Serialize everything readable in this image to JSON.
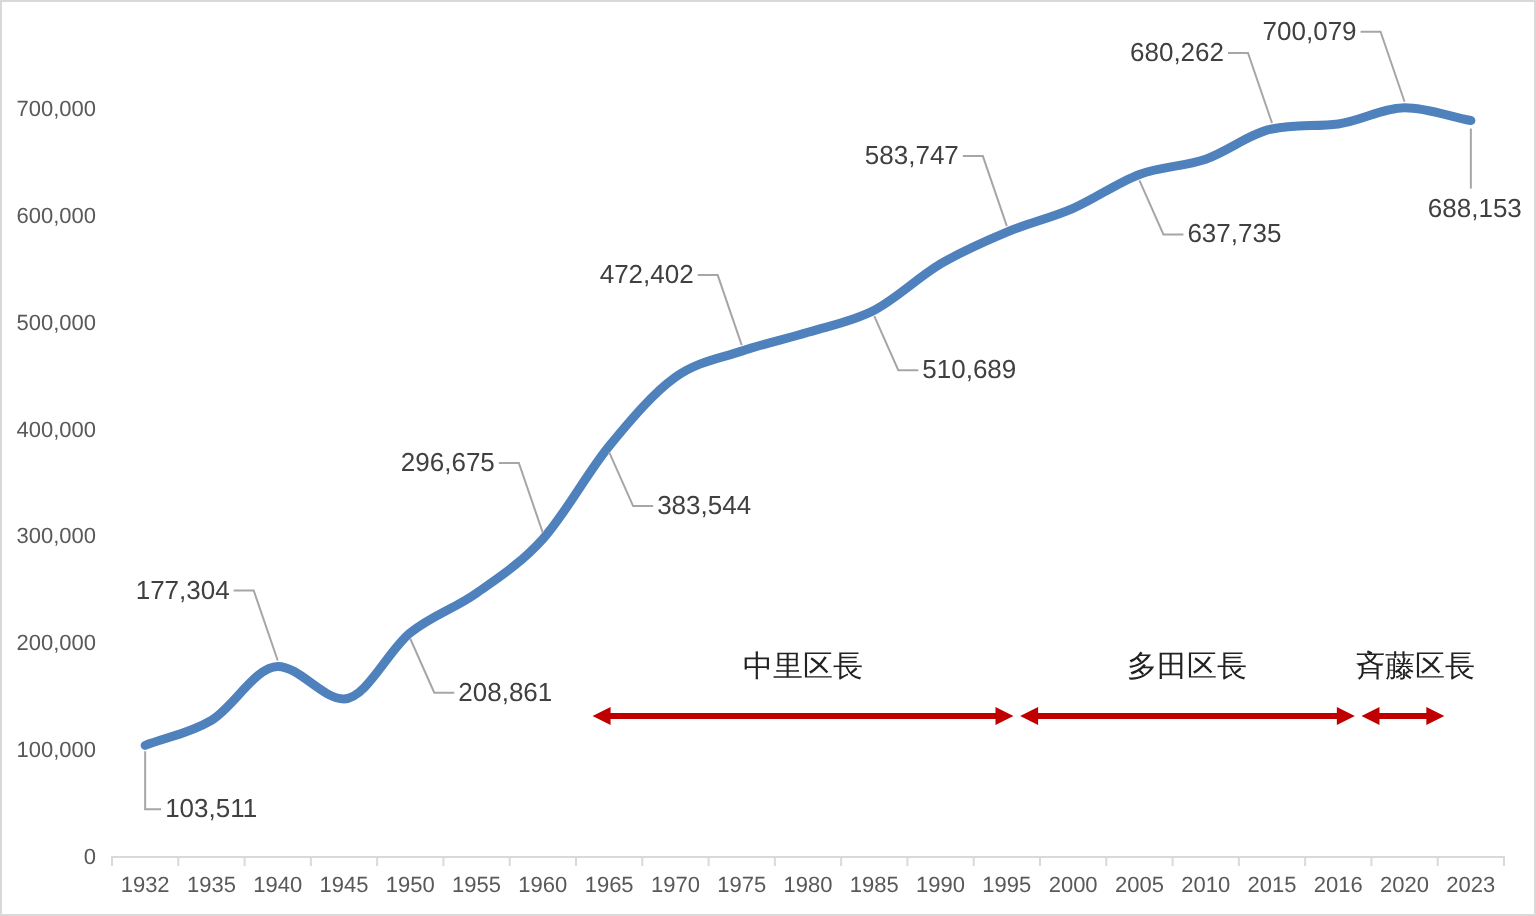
{
  "chart_data": {
    "type": "line",
    "categories": [
      "1932",
      "1935",
      "1940",
      "1945",
      "1950",
      "1955",
      "1960",
      "1965",
      "1970",
      "1975",
      "1980",
      "1985",
      "1990",
      "1995",
      "2000",
      "2005",
      "2010",
      "2015",
      "2016",
      "2020",
      "2023"
    ],
    "values": [
      103511,
      127000,
      177304,
      147000,
      208861,
      246000,
      296675,
      383544,
      448000,
      472402,
      490000,
      510689,
      554000,
      583747,
      606000,
      637735,
      652000,
      680262,
      685000,
      700079,
      688153
    ],
    "value_labels": [
      "103,511",
      null,
      "177,304",
      null,
      "208,861",
      null,
      "296,675",
      "383,544",
      null,
      "472,402",
      null,
      "510,689",
      null,
      "583,747",
      null,
      "637,735",
      null,
      "680,262",
      null,
      "700,079",
      "688,153"
    ],
    "color": "#4f81bd",
    "ylim": [
      0,
      800000
    ],
    "yticks": [
      0,
      {
        "value": 100000,
        "label": "100,000"
      },
      {
        "value": 200000,
        "label": "200,000"
      },
      {
        "value": 300000,
        "label": "300,000"
      },
      {
        "value": 400000,
        "label": "400,000"
      },
      {
        "value": 500000,
        "label": "500,000"
      },
      {
        "value": 600000,
        "label": "600,000"
      },
      {
        "value": 700000,
        "label": "700,000"
      }
    ],
    "annotations": [
      "中里区長",
      "多田区長",
      "斉藤区長"
    ],
    "grid": false,
    "marker": "none",
    "line_style": "solid"
  }
}
